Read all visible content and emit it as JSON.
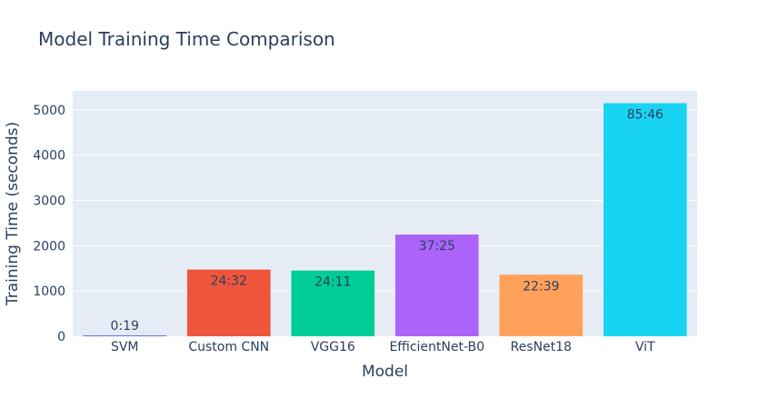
{
  "chart_data": {
    "type": "bar",
    "title": "Model Training Time Comparison",
    "xlabel": "Model",
    "ylabel": "Training Time (seconds)",
    "categories": [
      "SVM",
      "Custom CNN",
      "VGG16",
      "EfficientNet-B0",
      "ResNet18",
      "ViT"
    ],
    "values": [
      19,
      1472,
      1451,
      2245,
      1359,
      5146
    ],
    "data_labels": [
      "0:19",
      "24:32",
      "24:11",
      "37:25",
      "22:39",
      "85:46"
    ],
    "colors": [
      "#636efa",
      "#ef553b",
      "#00cc96",
      "#ab63fa",
      "#ffa15a",
      "#19d3f3"
    ],
    "ylim": [
      0,
      5417
    ],
    "yticks": [
      0,
      1000,
      2000,
      3000,
      4000,
      5000
    ],
    "grid": true,
    "legend": "none",
    "plot_background": "#e5ecf6"
  }
}
